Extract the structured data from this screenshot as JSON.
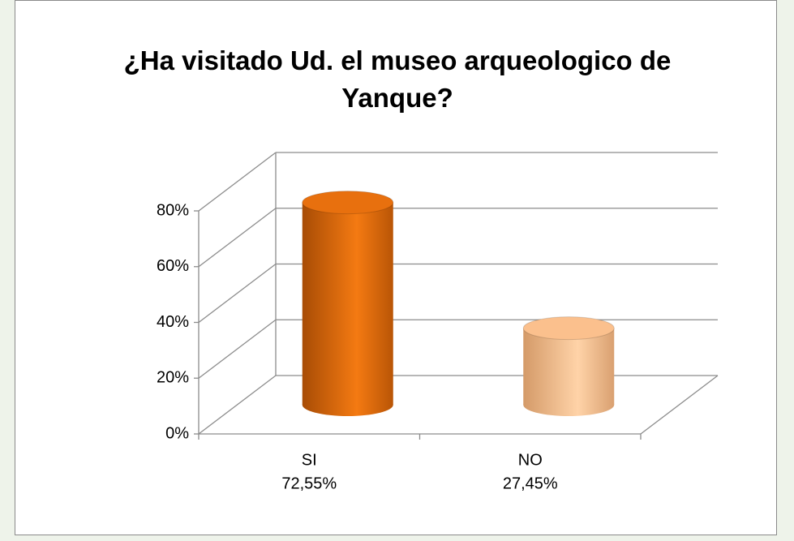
{
  "chart_data": {
    "type": "bar3d",
    "title": "¿Ha visitado Ud. el museo arqueologico de Yanque?",
    "categories": [
      "SI",
      "NO"
    ],
    "values": [
      72.55,
      27.45
    ],
    "value_labels": [
      "72,55%",
      "27,45%"
    ],
    "colors": [
      "#e8700e",
      "#fbc08d"
    ],
    "ylim": [
      0,
      80
    ],
    "yticks": [
      {
        "value": 0,
        "label": "0%"
      },
      {
        "value": 20,
        "label": "20%"
      },
      {
        "value": 40,
        "label": "40%"
      },
      {
        "value": 60,
        "label": "60%"
      },
      {
        "value": 80,
        "label": "80%"
      }
    ],
    "grid": true
  }
}
